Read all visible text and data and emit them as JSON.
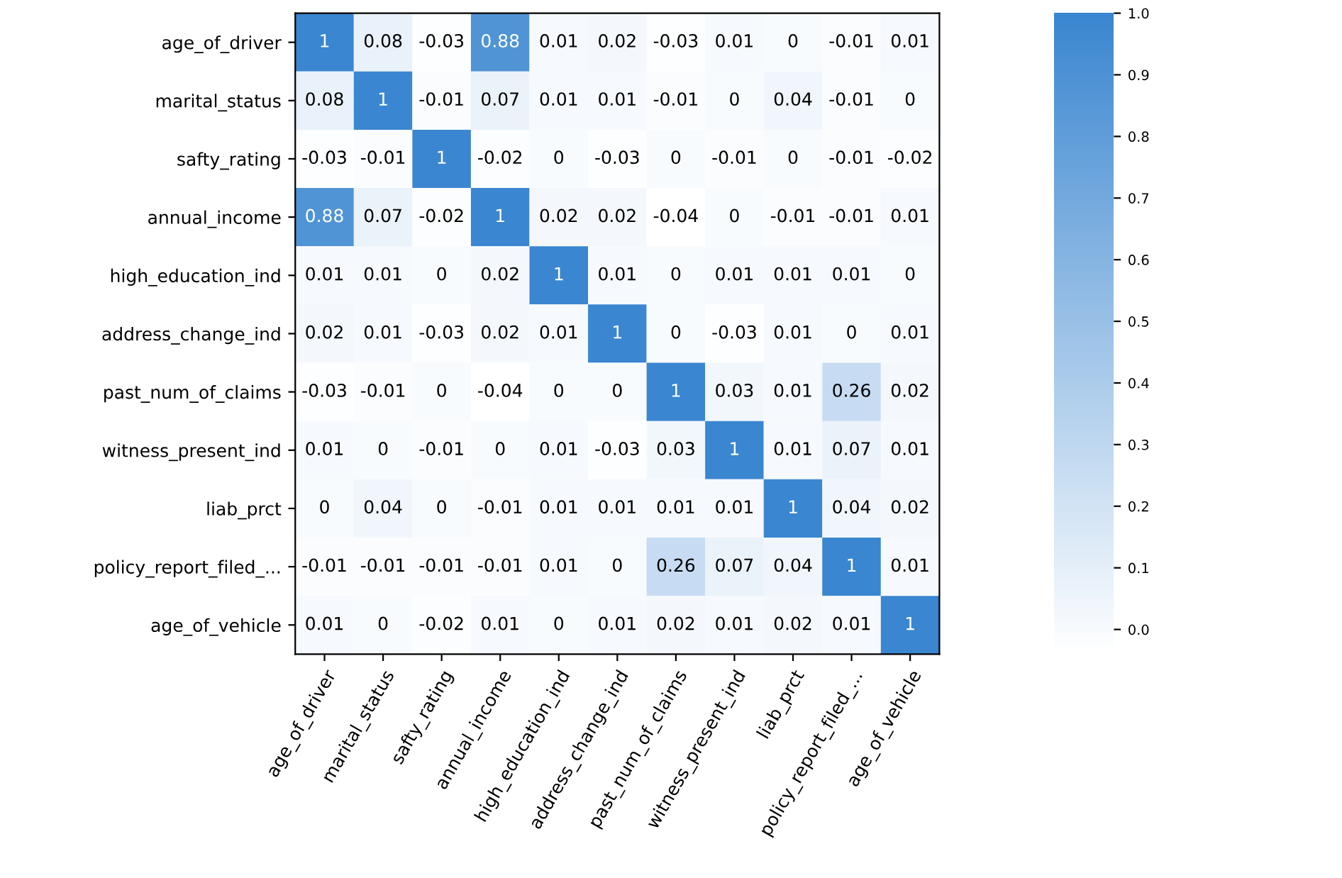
{
  "chart_data": {
    "type": "heatmap",
    "categories": [
      "age_of_driver",
      "marital_status",
      "safty_rating",
      "annual_income",
      "high_education_ind",
      "address_change_ind",
      "past_num_of_claims",
      "witness_present_ind",
      "liab_prct",
      "policy_report_filed_...",
      "age_of_vehicle"
    ],
    "y_categories": [
      "age_of_driver",
      "marital_status",
      "safty_rating",
      "annual_income",
      "high_education_ind",
      "address_change_ind",
      "past_num_of_claims",
      "witness_present_ind",
      "liab_prct",
      "policy_report_filed_...",
      "age_of_vehicle"
    ],
    "cells": [
      [
        1,
        0.08,
        -0.03,
        0.88,
        0.01,
        0.02,
        -0.03,
        0.01,
        0,
        -0.01,
        0.01
      ],
      [
        0.08,
        1,
        -0.01,
        0.07,
        0.01,
        0.01,
        -0.01,
        0,
        0.04,
        -0.01,
        0
      ],
      [
        -0.03,
        -0.01,
        1,
        -0.02,
        0,
        -0.03,
        0,
        -0.01,
        0,
        -0.01,
        -0.02
      ],
      [
        0.88,
        0.07,
        -0.02,
        1,
        0.02,
        0.02,
        -0.04,
        0,
        -0.01,
        -0.01,
        0.01
      ],
      [
        0.01,
        0.01,
        0,
        0.02,
        1,
        0.01,
        0,
        0.01,
        0.01,
        0.01,
        0
      ],
      [
        0.02,
        0.01,
        -0.03,
        0.02,
        0.01,
        1,
        0,
        -0.03,
        0.01,
        0,
        0.01
      ],
      [
        -0.03,
        -0.01,
        0,
        -0.04,
        0,
        0,
        1,
        0.03,
        0.01,
        0.26,
        0.02
      ],
      [
        0.01,
        0,
        -0.01,
        0,
        0.01,
        -0.03,
        0.03,
        1,
        0.01,
        0.07,
        0.01
      ],
      [
        0,
        0.04,
        0,
        -0.01,
        0.01,
        0.01,
        0.01,
        0.01,
        1,
        0.04,
        0.02
      ],
      [
        -0.01,
        -0.01,
        -0.01,
        -0.01,
        0.01,
        0,
        0.26,
        0.07,
        0.04,
        1,
        0.01
      ],
      [
        0.01,
        0,
        -0.02,
        0.01,
        0,
        0.01,
        0.02,
        0.01,
        0.02,
        0.01,
        1
      ]
    ],
    "color": "#3a86d0",
    "clim": [
      -0.04,
      1
    ],
    "cticks": [
      {
        "value": 0,
        "label": "0.0"
      },
      {
        "value": 0.1,
        "label": "0.1"
      },
      {
        "value": 0.2,
        "label": "0.2"
      },
      {
        "value": 0.3,
        "label": "0.3"
      },
      {
        "value": 0.4,
        "label": "0.4"
      },
      {
        "value": 0.5,
        "label": "0.5"
      },
      {
        "value": 0.6,
        "label": "0.6"
      },
      {
        "value": 0.7,
        "label": "0.7"
      },
      {
        "value": 0.8,
        "label": "0.8"
      },
      {
        "value": 0.9,
        "label": "0.9"
      },
      {
        "value": 1,
        "label": "1.0"
      }
    ],
    "data_labels": true,
    "grid": false
  }
}
